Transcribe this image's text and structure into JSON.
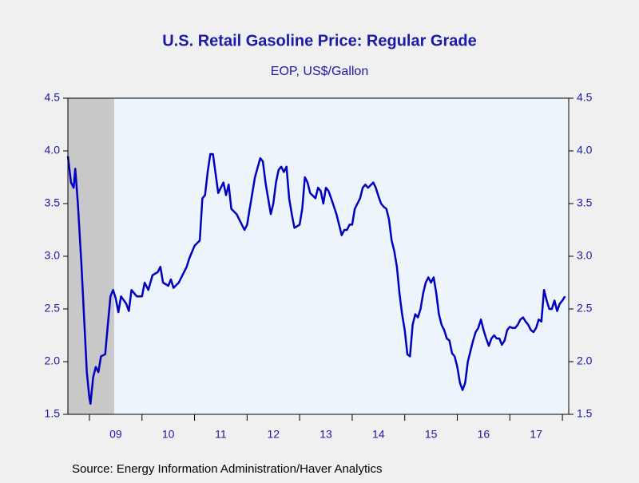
{
  "chart_data": {
    "type": "line",
    "title": "U.S. Retail Gasoline Price: Regular Grade",
    "subtitle": "EOP, US$/Gallon",
    "source": "Source:  Energy Information Administration/Haver Analytics",
    "xlim": [
      2008.59,
      2018.12
    ],
    "xticks": [
      {
        "value": 2009.5,
        "label": "09"
      },
      {
        "value": 2010.5,
        "label": "10"
      },
      {
        "value": 2011.5,
        "label": "11"
      },
      {
        "value": 2012.5,
        "label": "12"
      },
      {
        "value": 2013.5,
        "label": "13"
      },
      {
        "value": 2014.5,
        "label": "14"
      },
      {
        "value": 2015.5,
        "label": "15"
      },
      {
        "value": 2016.5,
        "label": "16"
      },
      {
        "value": 2017.5,
        "label": "17"
      }
    ],
    "year_ticks": [
      2009,
      2010,
      2011,
      2012,
      2013,
      2014,
      2015,
      2016,
      2017,
      2018
    ],
    "ylim": [
      1.5,
      4.5
    ],
    "yticks": [
      1.5,
      {
        "value": 2,
        "label": "2.0"
      },
      2.5,
      {
        "value": 3,
        "label": "3.0"
      },
      3.5,
      {
        "value": 4,
        "label": "4.0"
      },
      4.5
    ],
    "y2lim": [
      1.5,
      4.5
    ],
    "y2ticks": [
      1.5,
      {
        "value": 2,
        "label": "2.0"
      },
      2.5,
      {
        "value": 3,
        "label": "3.0"
      },
      3.5,
      {
        "value": 4,
        "label": "4.0"
      },
      4.5
    ],
    "shaded": {
      "start": 2008.59,
      "end": 2009.47,
      "color": "#c8c8c8"
    },
    "x": [
      2008.59,
      2008.65,
      2008.7,
      2008.73,
      2008.78,
      2008.85,
      2008.9,
      2008.95,
      2009.0,
      2009.02,
      2009.07,
      2009.12,
      2009.17,
      2009.22,
      2009.3,
      2009.35,
      2009.4,
      2009.45,
      2009.5,
      2009.55,
      2009.6,
      2009.7,
      2009.75,
      2009.8,
      2009.9,
      2010.0,
      2010.05,
      2010.12,
      2010.2,
      2010.3,
      2010.35,
      2010.4,
      2010.5,
      2010.55,
      2010.6,
      2010.7,
      2010.8,
      2010.85,
      2010.9,
      2011.0,
      2011.1,
      2011.15,
      2011.2,
      2011.25,
      2011.3,
      2011.35,
      2011.45,
      2011.5,
      2011.55,
      2011.6,
      2011.65,
      2011.7,
      2011.8,
      2011.9,
      2011.95,
      2012.0,
      2012.05,
      2012.1,
      2012.15,
      2012.25,
      2012.3,
      2012.35,
      2012.4,
      2012.45,
      2012.5,
      2012.55,
      2012.6,
      2012.65,
      2012.7,
      2012.75,
      2012.8,
      2012.85,
      2012.9,
      2013.0,
      2013.05,
      2013.1,
      2013.15,
      2013.2,
      2013.3,
      2013.35,
      2013.4,
      2013.45,
      2013.5,
      2013.55,
      2013.6,
      2013.7,
      2013.8,
      2013.85,
      2013.9,
      2013.95,
      2014.0,
      2014.05,
      2014.1,
      2014.15,
      2014.2,
      2014.25,
      2014.3,
      2014.4,
      2014.45,
      2014.5,
      2014.55,
      2014.6,
      2014.65,
      2014.7,
      2014.75,
      2014.8,
      2014.85,
      2014.9,
      2014.95,
      2015.0,
      2015.05,
      2015.1,
      2015.15,
      2015.2,
      2015.25,
      2015.3,
      2015.35,
      2015.4,
      2015.45,
      2015.5,
      2015.55,
      2015.6,
      2015.65,
      2015.7,
      2015.75,
      2015.8,
      2015.85,
      2015.9,
      2015.95,
      2016.0,
      2016.05,
      2016.1,
      2016.15,
      2016.2,
      2016.25,
      2016.3,
      2016.35,
      2016.4,
      2016.45,
      2016.5,
      2016.55,
      2016.6,
      2016.65,
      2016.7,
      2016.75,
      2016.8,
      2016.85,
      2016.9,
      2016.95,
      2017.0,
      2017.05,
      2017.1,
      2017.15,
      2017.2,
      2017.25,
      2017.3,
      2017.35,
      2017.4,
      2017.45,
      2017.5,
      2017.55,
      2017.6,
      2017.65,
      2017.7,
      2017.75,
      2017.8,
      2017.85,
      2017.9,
      2017.95,
      2018.0,
      2018.05
    ],
    "series": [
      {
        "name": "Retail gasoline price",
        "color": "#0000c0",
        "values": [
          3.95,
          3.7,
          3.65,
          3.83,
          3.5,
          2.9,
          2.4,
          1.9,
          1.65,
          1.6,
          1.85,
          1.95,
          1.9,
          2.05,
          2.07,
          2.35,
          2.62,
          2.68,
          2.6,
          2.47,
          2.62,
          2.55,
          2.48,
          2.68,
          2.62,
          2.62,
          2.75,
          2.68,
          2.82,
          2.85,
          2.9,
          2.75,
          2.72,
          2.78,
          2.7,
          2.75,
          2.85,
          2.9,
          2.98,
          3.1,
          3.15,
          3.55,
          3.58,
          3.8,
          3.97,
          3.97,
          3.6,
          3.65,
          3.7,
          3.58,
          3.68,
          3.45,
          3.4,
          3.3,
          3.25,
          3.3,
          3.45,
          3.6,
          3.75,
          3.93,
          3.9,
          3.7,
          3.55,
          3.4,
          3.5,
          3.7,
          3.82,
          3.85,
          3.8,
          3.85,
          3.55,
          3.4,
          3.27,
          3.3,
          3.45,
          3.75,
          3.7,
          3.6,
          3.55,
          3.65,
          3.62,
          3.5,
          3.65,
          3.62,
          3.55,
          3.4,
          3.2,
          3.25,
          3.25,
          3.3,
          3.3,
          3.45,
          3.5,
          3.55,
          3.65,
          3.68,
          3.65,
          3.7,
          3.65,
          3.57,
          3.5,
          3.47,
          3.45,
          3.35,
          3.15,
          3.05,
          2.9,
          2.65,
          2.45,
          2.3,
          2.07,
          2.05,
          2.35,
          2.45,
          2.42,
          2.5,
          2.65,
          2.75,
          2.8,
          2.75,
          2.8,
          2.65,
          2.45,
          2.35,
          2.3,
          2.22,
          2.2,
          2.08,
          2.05,
          1.95,
          1.8,
          1.73,
          1.8,
          2.0,
          2.1,
          2.2,
          2.28,
          2.32,
          2.4,
          2.3,
          2.22,
          2.15,
          2.22,
          2.25,
          2.22,
          2.22,
          2.16,
          2.2,
          2.3,
          2.33,
          2.32,
          2.32,
          2.35,
          2.4,
          2.42,
          2.38,
          2.35,
          2.3,
          2.28,
          2.32,
          2.4,
          2.38,
          2.68,
          2.58,
          2.5,
          2.5,
          2.58,
          2.48,
          2.55,
          2.58,
          2.62
        ]
      }
    ]
  }
}
